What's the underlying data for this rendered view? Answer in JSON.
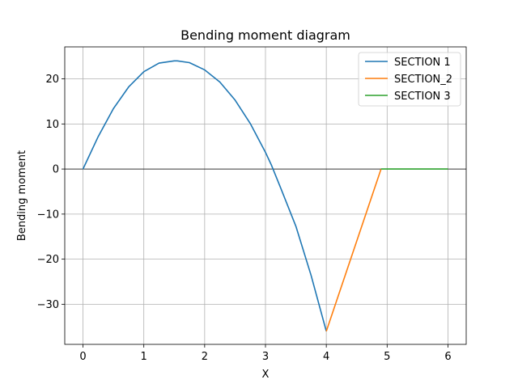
{
  "chart_data": {
    "type": "line",
    "title": "Bending moment diagram",
    "xlabel": "X",
    "ylabel": "Bending moment",
    "xlim": [
      -0.3,
      6.3
    ],
    "ylim": [
      -38.9,
      27.1
    ],
    "xticks": [
      0,
      1,
      2,
      3,
      4,
      5,
      6
    ],
    "xtick_labels": [
      "0",
      "1",
      "2",
      "3",
      "4",
      "5",
      "6"
    ],
    "yticks": [
      -30,
      -20,
      -10,
      0,
      10,
      20
    ],
    "ytick_labels": [
      "−30",
      "−20",
      "−10",
      "0",
      "10",
      "20"
    ],
    "grid": true,
    "zero_line": true,
    "legend_position": "upper right",
    "series": [
      {
        "name": "SECTION 1",
        "color": "#1f77b4",
        "x": [
          0,
          0.25,
          0.5,
          0.75,
          1.0,
          1.25,
          1.5,
          1.55,
          1.75,
          2.0,
          2.25,
          2.5,
          2.75,
          3.0,
          3.1,
          3.25,
          3.5,
          3.75,
          4.0
        ],
        "y": [
          0,
          7.2,
          13.4,
          18.2,
          21.6,
          23.5,
          24.0,
          24.0,
          23.6,
          22.0,
          19.3,
          15.3,
          10.1,
          3.7,
          0.8,
          -4.2,
          -12.7,
          -23.6,
          -36.0
        ]
      },
      {
        "name": "SECTION_2",
        "color": "#ff7f0e",
        "x": [
          4.0,
          4.9
        ],
        "y": [
          -36.0,
          0
        ]
      },
      {
        "name": "SECTION 3",
        "color": "#2ca02c",
        "x": [
          4.9,
          6.0
        ],
        "y": [
          0,
          0
        ]
      }
    ]
  }
}
